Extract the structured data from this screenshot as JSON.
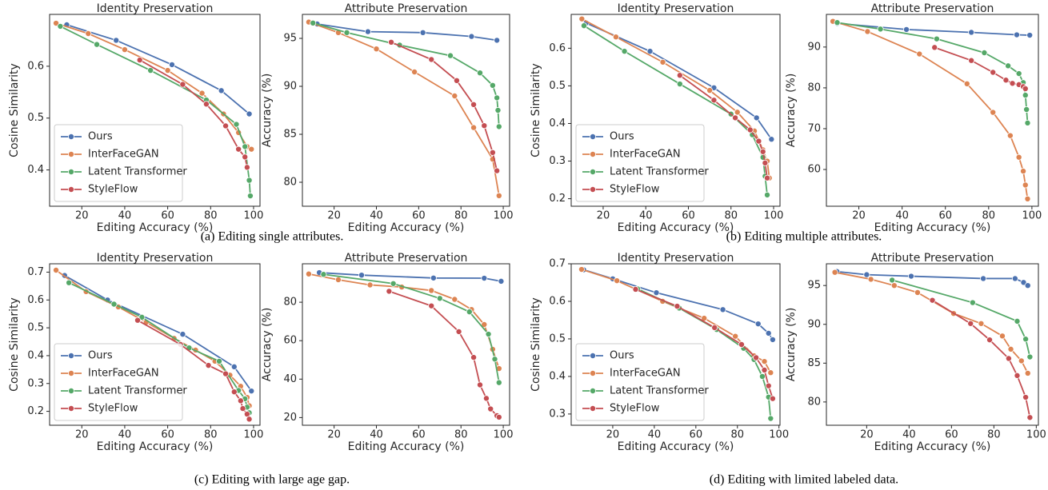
{
  "captions": [
    "(a) Editing single attributes.",
    "(b) Editing multiple attributes.",
    "(c) Editing with large age gap.",
    "(d) Editing with limited labeled data."
  ],
  "chart_data": [
    {
      "type": "line",
      "title": "Identity Preservation",
      "xlabel": "Editing Accuracy (%)",
      "ylabel": "Cosine Similarity",
      "xlim": [
        5,
        103
      ],
      "xticks": [
        20,
        40,
        60,
        80,
        100
      ],
      "ylim": [
        0.33,
        0.7
      ],
      "yticks": [
        0.4,
        0.5,
        0.6
      ],
      "legend": "lower left",
      "series": [
        {
          "name": "Ours",
          "color": "#4c72b0",
          "x": [
            13,
            36,
            62,
            85,
            98
          ],
          "values": [
            0.68,
            0.65,
            0.603,
            0.553,
            0.508
          ]
        },
        {
          "name": "InterFaceGAN",
          "color": "#dd8452",
          "x": [
            8,
            23,
            40,
            60,
            76,
            86,
            93,
            97,
            99
          ],
          "values": [
            0.683,
            0.663,
            0.632,
            0.592,
            0.548,
            0.508,
            0.472,
            0.445,
            0.44
          ]
        },
        {
          "name": "Latent Transformer",
          "color": "#55a868",
          "x": [
            10,
            27,
            52,
            78,
            92,
            96,
            98,
            98.5
          ],
          "values": [
            0.677,
            0.642,
            0.592,
            0.535,
            0.488,
            0.445,
            0.38,
            0.35
          ]
        },
        {
          "name": "StyleFlow",
          "color": "#c44e52",
          "x": [
            47,
            67,
            78,
            87,
            93,
            96,
            97
          ],
          "values": [
            0.612,
            0.565,
            0.527,
            0.485,
            0.44,
            0.425,
            0.405
          ]
        }
      ]
    },
    {
      "type": "line",
      "title": "Attribute Preservation",
      "xlabel": "Editing Accuracy (%)",
      "ylabel": "Accuracy (%)",
      "xlim": [
        5,
        103
      ],
      "xticks": [
        20,
        40,
        60,
        80,
        100
      ],
      "ylim": [
        77.5,
        97.5
      ],
      "yticks": [
        80,
        85,
        90,
        95
      ],
      "series": [
        {
          "name": "Ours",
          "color": "#4c72b0",
          "x": [
            12,
            36,
            62,
            85,
            97
          ],
          "values": [
            96.5,
            95.7,
            95.6,
            95.2,
            94.8
          ]
        },
        {
          "name": "InterFaceGAN",
          "color": "#dd8452",
          "x": [
            8,
            22,
            40,
            58,
            77,
            86,
            95,
            98
          ],
          "values": [
            96.7,
            95.6,
            93.9,
            91.5,
            89.0,
            85.7,
            82.4,
            78.6
          ]
        },
        {
          "name": "Latent Transformer",
          "color": "#55a868",
          "x": [
            10,
            26,
            51,
            75,
            89,
            95,
            97,
            97.5,
            98
          ],
          "values": [
            96.6,
            95.6,
            94.3,
            93.2,
            91.4,
            90.1,
            88.8,
            87.5,
            85.8
          ]
        },
        {
          "name": "StyleFlow",
          "color": "#c44e52",
          "x": [
            47,
            66,
            78,
            86,
            91,
            95,
            97
          ],
          "values": [
            94.6,
            92.8,
            90.6,
            88.1,
            85.9,
            83.1,
            81.2
          ]
        }
      ]
    },
    {
      "type": "line",
      "title": "Identity Preservation",
      "xlabel": "Editing Accuracy (%)",
      "ylabel": "Cosine Similarity",
      "xlim": [
        5,
        103
      ],
      "xticks": [
        20,
        40,
        60,
        80,
        100
      ],
      "ylim": [
        0.18,
        0.69
      ],
      "yticks": [
        0.2,
        0.3,
        0.4,
        0.5,
        0.6
      ],
      "legend": "lower left",
      "series": [
        {
          "name": "Ours",
          "color": "#4c72b0",
          "x": [
            12,
            42,
            72,
            92,
            99
          ],
          "values": [
            0.667,
            0.592,
            0.495,
            0.415,
            0.358
          ]
        },
        {
          "name": "InterFaceGAN",
          "color": "#dd8452",
          "x": [
            10,
            26,
            48,
            70,
            83,
            91,
            95,
            97,
            98
          ],
          "values": [
            0.678,
            0.63,
            0.563,
            0.488,
            0.43,
            0.38,
            0.33,
            0.3,
            0.255
          ]
        },
        {
          "name": "Latent Transformer",
          "color": "#55a868",
          "x": [
            11,
            30,
            56,
            80,
            90,
            95,
            96,
            97
          ],
          "values": [
            0.66,
            0.592,
            0.505,
            0.425,
            0.37,
            0.31,
            0.26,
            0.21
          ]
        },
        {
          "name": "StyleFlow",
          "color": "#c44e52",
          "x": [
            56,
            72,
            82,
            89,
            93,
            95,
            96,
            97
          ],
          "values": [
            0.528,
            0.462,
            0.415,
            0.383,
            0.353,
            0.325,
            0.295,
            0.255
          ]
        }
      ]
    },
    {
      "type": "line",
      "title": "Attribute Preservation",
      "xlabel": "Editing Accuracy (%)",
      "ylabel": "Accuracy (%)",
      "xlim": [
        5,
        103
      ],
      "xticks": [
        20,
        40,
        60,
        80,
        100
      ],
      "ylim": [
        51,
        98
      ],
      "yticks": [
        60,
        70,
        80,
        90
      ],
      "series": [
        {
          "name": "Ours",
          "color": "#4c72b0",
          "x": [
            10,
            42,
            72,
            93,
            99
          ],
          "values": [
            95.8,
            94.3,
            93.6,
            93.0,
            92.9
          ]
        },
        {
          "name": "InterFaceGAN",
          "color": "#dd8452",
          "x": [
            8,
            24,
            48,
            70,
            82,
            90,
            94,
            96,
            97,
            98
          ],
          "values": [
            96.3,
            93.8,
            88.3,
            81,
            74.0,
            68.3,
            63.0,
            59.6,
            56.2,
            52.8
          ]
        },
        {
          "name": "Latent Transformer",
          "color": "#55a868",
          "x": [
            10,
            30,
            56,
            78,
            89,
            94,
            96,
            97,
            97.5,
            98
          ],
          "values": [
            96,
            94.4,
            92.0,
            88.6,
            85.4,
            83.5,
            81.3,
            78.2,
            74.7,
            71.4
          ]
        },
        {
          "name": "StyleFlow",
          "color": "#c44e52",
          "x": [
            55,
            72,
            82,
            88,
            91,
            94,
            96,
            97
          ],
          "values": [
            89.9,
            86.7,
            83.8,
            81.9,
            81.1,
            80.8,
            80.3,
            79.8
          ]
        }
      ]
    },
    {
      "type": "line",
      "title": "Identity Preservation",
      "xlabel": "Editing Accuracy (%)",
      "ylabel": "Cosine Similarity",
      "xlim": [
        5,
        103
      ],
      "xticks": [
        20,
        40,
        60,
        80,
        100
      ],
      "ylim": [
        0.15,
        0.73
      ],
      "yticks": [
        0.2,
        0.3,
        0.4,
        0.5,
        0.6,
        0.7
      ],
      "legend": "lower left",
      "series": [
        {
          "name": "Ours",
          "color": "#4c72b0",
          "x": [
            12,
            32,
            67,
            91,
            99
          ],
          "values": [
            0.688,
            0.6,
            0.477,
            0.36,
            0.273
          ]
        },
        {
          "name": "InterFaceGAN",
          "color": "#dd8452",
          "x": [
            8,
            22,
            37,
            50,
            63,
            73,
            82,
            89,
            94,
            97,
            98
          ],
          "values": [
            0.707,
            0.63,
            0.575,
            0.52,
            0.462,
            0.42,
            0.38,
            0.33,
            0.29,
            0.25,
            0.22
          ]
        },
        {
          "name": "Latent Transformer",
          "color": "#55a868",
          "x": [
            14,
            35,
            48,
            70,
            84,
            93,
            96,
            97,
            98
          ],
          "values": [
            0.662,
            0.585,
            0.538,
            0.428,
            0.38,
            0.275,
            0.245,
            0.215,
            0.195
          ]
        },
        {
          "name": "StyleFlow",
          "color": "#c44e52",
          "x": [
            46,
            66,
            79,
            87,
            91,
            94,
            95,
            97,
            98
          ],
          "values": [
            0.527,
            0.44,
            0.365,
            0.335,
            0.27,
            0.238,
            0.21,
            0.19,
            0.172
          ]
        }
      ]
    },
    {
      "type": "line",
      "title": "Attribute Preservation",
      "xlabel": "Editing Accuracy (%)",
      "ylabel": "Accuracy (%)",
      "xlim": [
        5,
        103
      ],
      "xticks": [
        20,
        40,
        60,
        80,
        100
      ],
      "ylim": [
        16,
        100
      ],
      "yticks": [
        20,
        40,
        60,
        80
      ],
      "series": [
        {
          "name": "Ours",
          "color": "#4c72b0",
          "x": [
            13,
            33,
            67,
            91,
            99
          ],
          "values": [
            95.4,
            94.1,
            92.6,
            92.5,
            90.9
          ]
        },
        {
          "name": "InterFaceGAN",
          "color": "#dd8452",
          "x": [
            8,
            22,
            37,
            52,
            66,
            77,
            85,
            91,
            95,
            98
          ],
          "values": [
            94.7,
            91.7,
            89.0,
            87.9,
            86.1,
            81.5,
            76.2,
            68.4,
            55.5,
            45.5
          ]
        },
        {
          "name": "Latent Transformer",
          "color": "#55a868",
          "x": [
            15,
            48,
            70,
            84,
            93,
            96,
            98
          ],
          "values": [
            94.5,
            89.7,
            82,
            75,
            63.4,
            50.4,
            38.2
          ]
        },
        {
          "name": "StyleFlow",
          "color": "#c44e52",
          "x": [
            46,
            66,
            79,
            86,
            89,
            92,
            94,
            97,
            98
          ],
          "values": [
            85.7,
            78.1,
            64.7,
            51.3,
            37.0,
            30.0,
            24.5,
            21.0,
            20.2
          ]
        }
      ]
    },
    {
      "type": "line",
      "title": "Identity Preservation",
      "xlabel": "Editing Accuracy (%)",
      "ylabel": "Cosine Similarity",
      "xlim": [
        0,
        100.5
      ],
      "xticks": [
        20,
        40,
        60,
        80,
        100
      ],
      "ylim": [
        0.27,
        0.7
      ],
      "yticks": [
        0.3,
        0.4,
        0.5,
        0.6,
        0.7
      ],
      "legend": "lower left",
      "series": [
        {
          "name": "Ours",
          "color": "#4c72b0",
          "x": [
            6,
            20,
            41,
            73,
            90,
            95,
            97
          ],
          "values": [
            0.684,
            0.66,
            0.623,
            0.578,
            0.54,
            0.515,
            0.498
          ]
        },
        {
          "name": "InterFaceGAN",
          "color": "#dd8452",
          "x": [
            5,
            22,
            44,
            64,
            79,
            88,
            93,
            96
          ],
          "values": [
            0.685,
            0.655,
            0.6,
            0.555,
            0.507,
            0.455,
            0.44,
            0.41
          ]
        },
        {
          "name": "Latent Transformer",
          "color": "#55a868",
          "x": [
            32,
            52,
            70,
            83,
            88,
            92,
            95,
            96
          ],
          "values": [
            0.633,
            0.582,
            0.525,
            0.475,
            0.445,
            0.4,
            0.345,
            0.288
          ]
        },
        {
          "name": "StyleFlow",
          "color": "#c44e52",
          "x": [
            31,
            51,
            69,
            82,
            89,
            93,
            95,
            97
          ],
          "values": [
            0.632,
            0.587,
            0.53,
            0.485,
            0.45,
            0.417,
            0.375,
            0.341
          ]
        }
      ]
    },
    {
      "type": "line",
      "title": "Attribute Preservation",
      "xlabel": "Editing Accuracy (%)",
      "ylabel": "Accuracy (%)",
      "xlim": [
        1,
        101
      ],
      "xticks": [
        20,
        40,
        60,
        80,
        100
      ],
      "ylim": [
        77,
        97.8
      ],
      "yticks": [
        80,
        85,
        90,
        95
      ],
      "series": [
        {
          "name": "Ours",
          "color": "#4c72b0",
          "x": [
            6,
            20,
            41,
            75,
            90,
            94,
            96
          ],
          "values": [
            96.8,
            96.4,
            96.2,
            95.9,
            95.9,
            95.4,
            95.0
          ]
        },
        {
          "name": "InterFaceGAN",
          "color": "#dd8452",
          "x": [
            5,
            22,
            33,
            44,
            61,
            74,
            84,
            88,
            93,
            96
          ],
          "values": [
            96.7,
            95.8,
            95.0,
            94.1,
            91.4,
            90.1,
            88.5,
            86.8,
            85.3,
            83.7
          ]
        },
        {
          "name": "Latent Transformer",
          "color": "#55a868",
          "x": [
            32,
            70,
            91,
            95,
            97
          ],
          "values": [
            95.7,
            92.8,
            90.4,
            88.1,
            85.8
          ]
        },
        {
          "name": "StyleFlow",
          "color": "#c44e52",
          "x": [
            51,
            69,
            78,
            87,
            91,
            95,
            97
          ],
          "values": [
            93.1,
            90.1,
            88.0,
            85.6,
            83.4,
            80.6,
            78.0
          ]
        }
      ]
    }
  ]
}
